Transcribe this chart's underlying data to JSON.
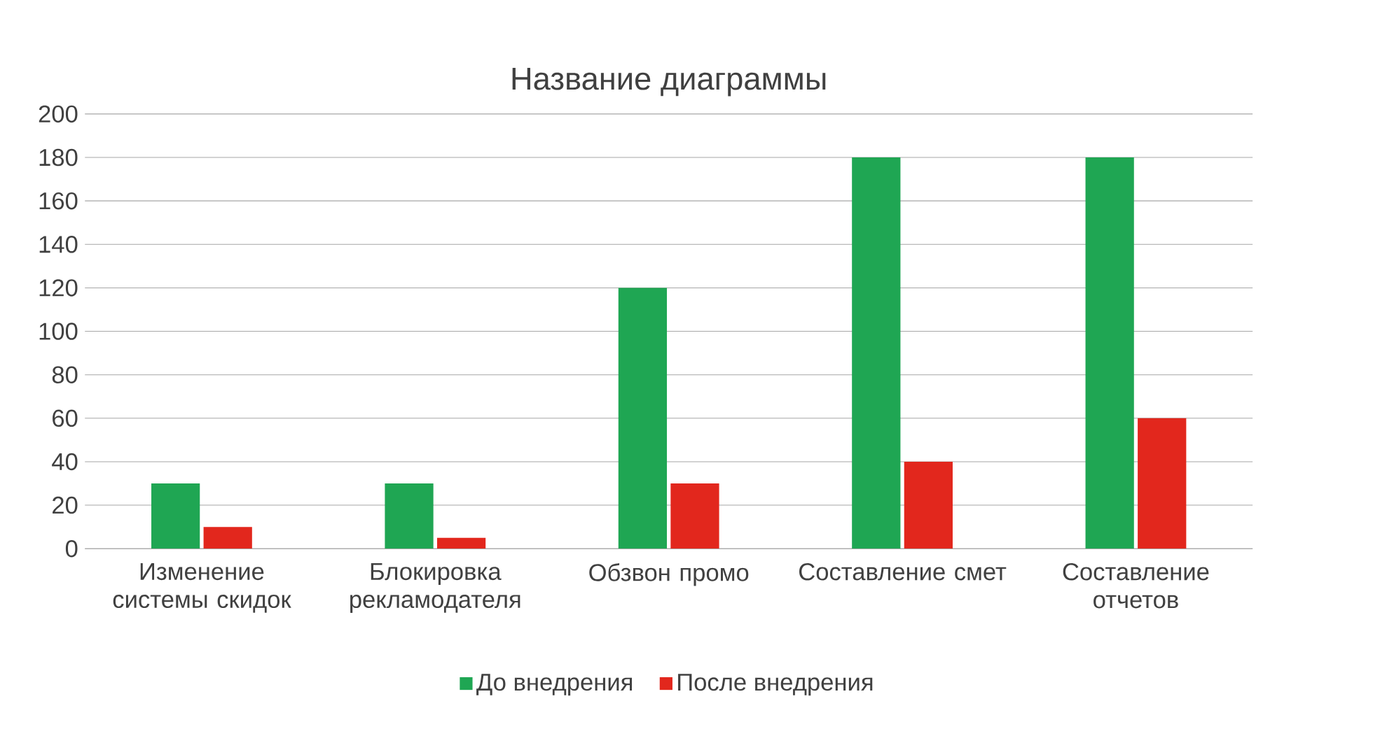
{
  "chart_data": {
    "type": "bar",
    "title": "Название диаграммы",
    "categories": [
      "Изменение системы скидок",
      "Блокировка рекламодателя",
      "Обзвон промо",
      "Составление смет",
      "Составление отчетов"
    ],
    "series": [
      {
        "name": "До внедрения",
        "color": "#1fa653",
        "values": [
          30,
          30,
          120,
          180,
          180
        ]
      },
      {
        "name": "После внедрения",
        "color": "#e2271d",
        "values": [
          10,
          5,
          30,
          40,
          60
        ]
      }
    ],
    "ylim": [
      0,
      200
    ],
    "yticks": [
      0,
      20,
      40,
      60,
      80,
      100,
      120,
      140,
      160,
      180,
      200
    ],
    "grid": "y",
    "legend": "bottom"
  }
}
